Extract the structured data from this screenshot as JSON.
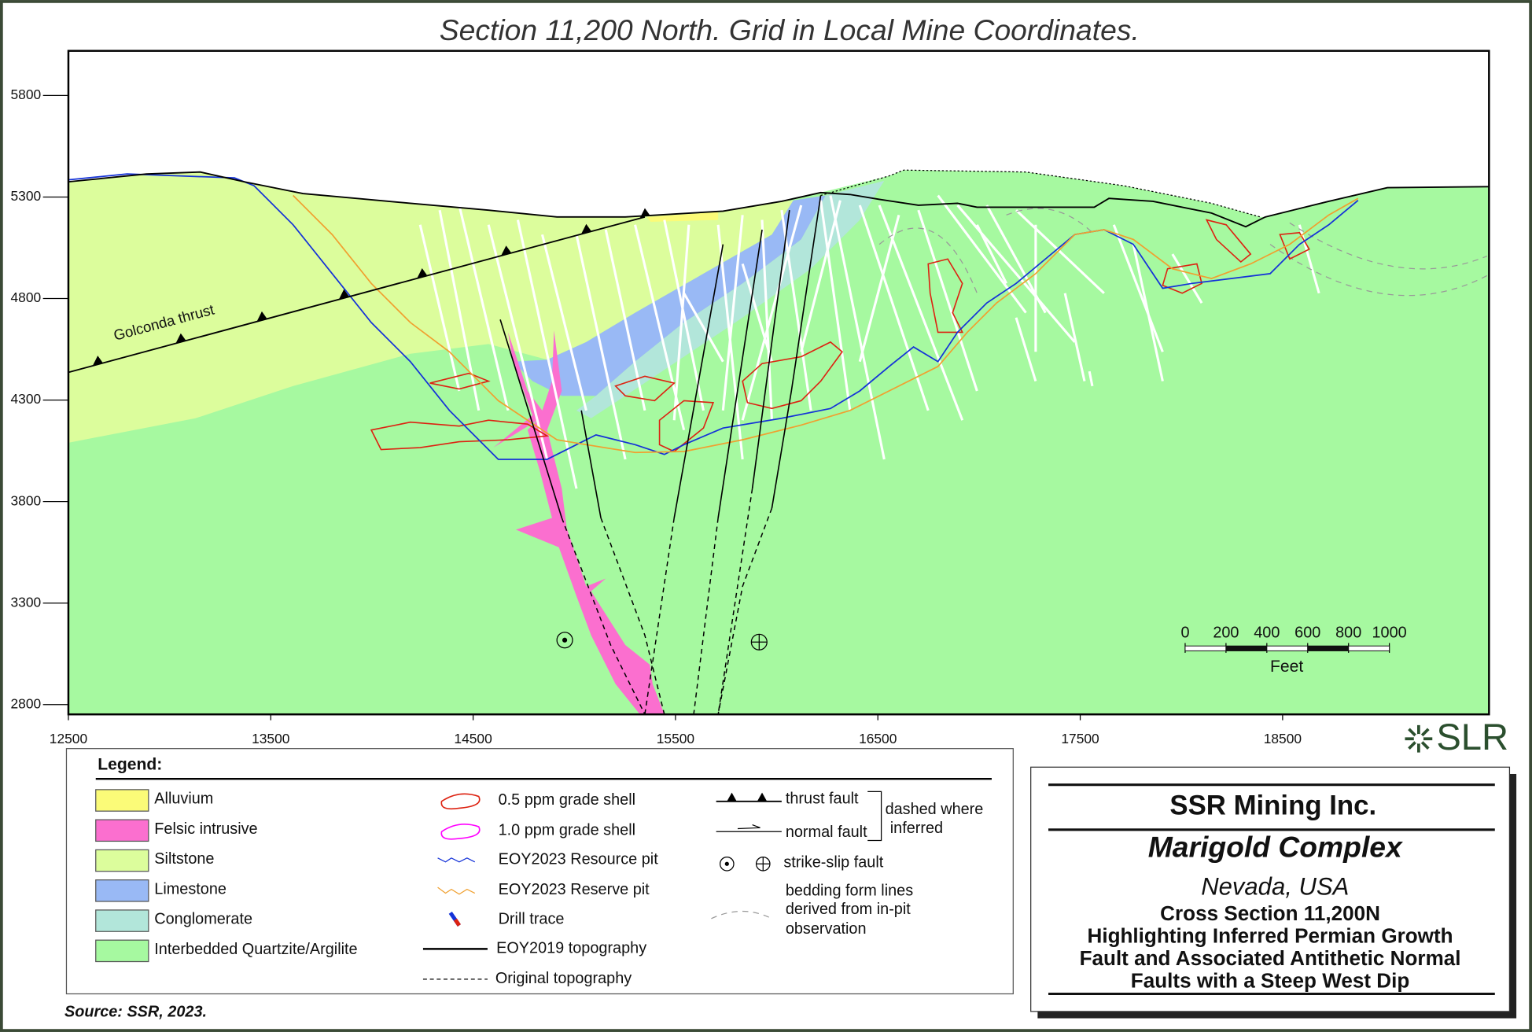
{
  "title": "Section 11,200 North.  Grid in Local Mine Coordinates.",
  "axes": {
    "xlim": [
      12500,
      19520
    ],
    "xticks": [
      12500,
      13500,
      14500,
      15500,
      16500,
      17500,
      18500
    ],
    "ylim": [
      2752,
      6020
    ],
    "yticks": [
      2800,
      3300,
      3800,
      4300,
      4800,
      5300,
      5800
    ]
  },
  "annotations": {
    "thrust_label": "Golconda thrust"
  },
  "scale_bar": {
    "ticks": [
      0,
      200,
      400,
      600,
      800,
      1000
    ],
    "unit": "Feet"
  },
  "logo": "SLR",
  "legend": {
    "title": "Legend:",
    "units": [
      {
        "name": "Alluvium",
        "color": "#fbfb78"
      },
      {
        "name": "Felsic intrusive",
        "color": "#fb6fcf"
      },
      {
        "name": "Siltstone",
        "color": "#dcfd9c"
      },
      {
        "name": "Limestone",
        "color": "#99b9f5"
      },
      {
        "name": "Conglomerate",
        "color": "#b2e6da"
      },
      {
        "name": "Interbedded Quartzite/Argilite",
        "color": "#a6f9a0"
      }
    ],
    "symbols": [
      "0.5 ppm grade shell",
      "1.0 ppm grade shell",
      "EOY2023 Resource pit",
      "EOY2023 Reserve pit",
      "Drill trace",
      "EOY2019 topography",
      "Original topography"
    ],
    "faults": {
      "thrust": "thrust fault",
      "normal": "normal fault",
      "note": [
        "dashed where",
        "inferred"
      ],
      "strike_slip": "strike-slip fault",
      "bedding": [
        "bedding form lines",
        "derived from in-pit",
        "observation"
      ]
    }
  },
  "title_block": {
    "company": "SSR Mining Inc.",
    "project": "Marigold Complex",
    "location": "Nevada, USA",
    "lines": [
      "Cross Section 11,200N",
      "Highlighting Inferred Permian Growth",
      "Fault and Associated Antithetic Normal",
      "Faults with a Steep West Dip"
    ]
  },
  "source": "Source: SSR, 2023."
}
